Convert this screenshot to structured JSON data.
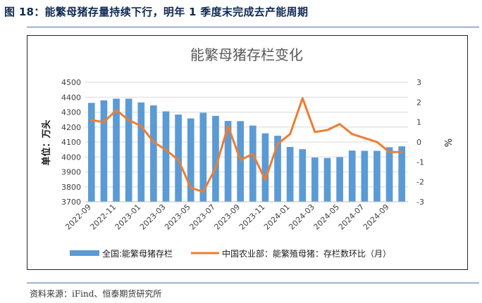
{
  "figure": {
    "caption": "图 18：能繁母猪存量持续下行，明年 1 季度末完成去产能周期",
    "source": "资料来源：iFind、恒泰期货研究所"
  },
  "chart_data": {
    "type": "bar",
    "title": "能繁母猪存栏变化",
    "ylabel_left": "单位：万头",
    "ylabel_right": "%",
    "ylim_left": [
      3700,
      4500
    ],
    "yticks_left": [
      "3700",
      "3800",
      "3900",
      "4000",
      "4100",
      "4200",
      "4300",
      "4400",
      "4500"
    ],
    "ylim_right": [
      -3,
      3
    ],
    "yticks_right": [
      "-3",
      "-2",
      "-1",
      "0",
      "1",
      "2",
      "3"
    ],
    "categories": [
      "2022-09",
      "2022-10",
      "2022-11",
      "2022-12",
      "2023-01",
      "2023-02",
      "2023-03",
      "2023-04",
      "2023-05",
      "2023-06",
      "2023-07",
      "2023-08",
      "2023-09",
      "2023-10",
      "2023-11",
      "2023-12",
      "2024-01",
      "2024-02",
      "2024-03",
      "2024-04",
      "2024-05",
      "2024-06",
      "2024-07",
      "2024-08",
      "2024-09",
      "2024-10"
    ],
    "xtick_labels": [
      "2022-09",
      "2022-11",
      "2023-01",
      "2023-03",
      "2023-05",
      "2023-07",
      "2023-09",
      "2023-11",
      "2024-01",
      "2024-03",
      "2024-05",
      "2024-07",
      "2024-09"
    ],
    "series": [
      {
        "name": "全国:能繁母猪存栏",
        "type": "bar",
        "axis": "left",
        "color": "#5b9bd5",
        "values": [
          4362,
          4379,
          4390,
          4390,
          4365,
          4345,
          4305,
          4284,
          4258,
          4296,
          4275,
          4241,
          4240,
          4210,
          4158,
          4142,
          4067,
          4052,
          3996,
          3993,
          3999,
          4043,
          4041,
          4041,
          4065,
          4071
        ]
      },
      {
        "name": "中国农业部：能繁殖母猪：存栏数环比（月）",
        "type": "line",
        "axis": "right",
        "color": "#ed7d31",
        "values": [
          1.1,
          1.0,
          1.6,
          1.1,
          0.8,
          0.0,
          -0.4,
          -0.9,
          -2.3,
          -2.5,
          -1.3,
          0.8,
          -0.9,
          -0.6,
          -1.9,
          -0.1,
          0.4,
          2.2,
          0.5,
          0.6,
          0.9,
          0.4,
          0.2,
          0.0,
          -0.5,
          -0.5
        ]
      }
    ],
    "grid": true,
    "legend_position": "bottom"
  }
}
